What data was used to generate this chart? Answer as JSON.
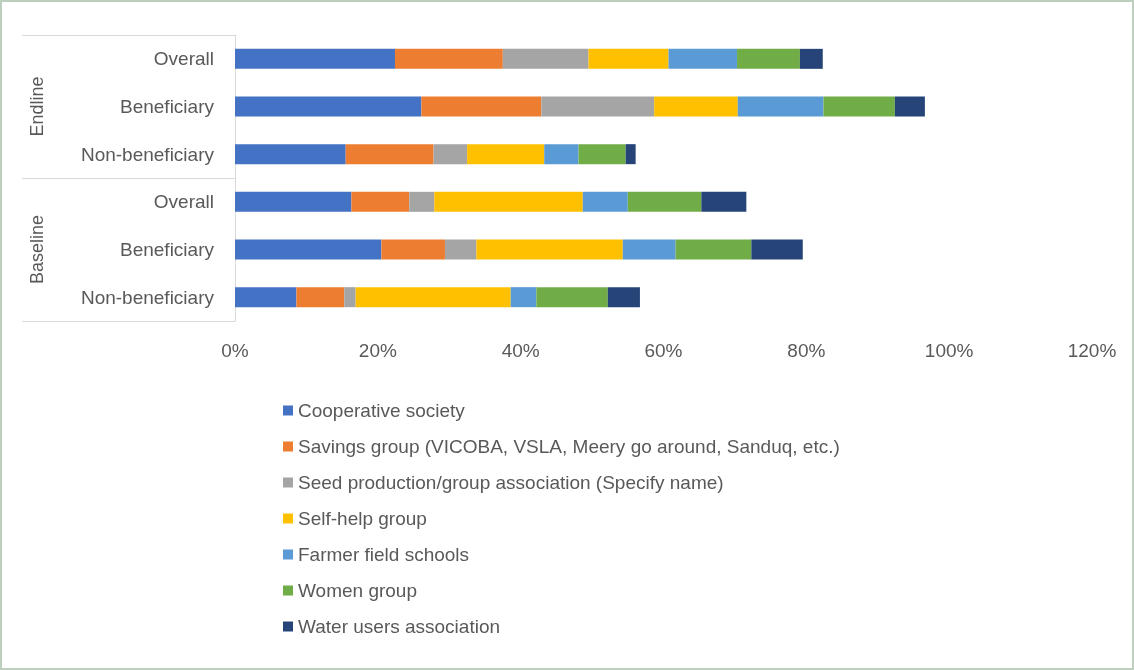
{
  "chart_data": {
    "type": "bar",
    "orientation": "horizontal",
    "stacked": true,
    "categories": [
      "Overall",
      "Beneficiary",
      "Non-beneficiary",
      "Overall",
      "Beneficiary",
      "Non-beneficiary"
    ],
    "annotations": [
      "Endline",
      "Baseline"
    ],
    "series": [
      {
        "name": "Cooperative society",
        "color": "#4472c4",
        "values": [
          22.4,
          26.1,
          15.5,
          16.3,
          20.5,
          8.6
        ]
      },
      {
        "name": "Savings group (VICOBA, VSLA, Meery go around, Sanduq, etc.)",
        "color": "#ed7d31",
        "values": [
          15.1,
          16.8,
          12.3,
          8.1,
          8.9,
          6.7
        ]
      },
      {
        "name": "Seed production/group association (Specify name)",
        "color": "#a5a5a5",
        "values": [
          12.0,
          15.8,
          4.7,
          3.5,
          4.4,
          1.6
        ]
      },
      {
        "name": "Self-help group",
        "color": "#ffc000",
        "values": [
          11.2,
          11.7,
          10.8,
          20.8,
          20.5,
          21.7
        ]
      },
      {
        "name": "Farmer field schools",
        "color": "#5b9bd5",
        "values": [
          9.6,
          12.0,
          4.8,
          6.3,
          7.4,
          3.6
        ]
      },
      {
        "name": "Women group",
        "color": "#70ad47",
        "values": [
          8.8,
          10.0,
          6.6,
          10.3,
          10.6,
          10.0
        ]
      },
      {
        "name": "Water users association",
        "color": "#264478",
        "values": [
          3.2,
          4.2,
          1.4,
          6.3,
          7.2,
          4.5
        ]
      }
    ],
    "xlim": [
      0,
      120
    ],
    "xticks": [
      {
        "value": 0,
        "label": "0%"
      },
      {
        "value": 20,
        "label": "20%"
      },
      {
        "value": 40,
        "label": "40%"
      },
      {
        "value": 60,
        "label": "60%"
      },
      {
        "value": 80,
        "label": "80%"
      },
      {
        "value": 100,
        "label": "100%"
      },
      {
        "value": 120,
        "label": "120%"
      }
    ],
    "grid": false,
    "legend": "bottom"
  }
}
